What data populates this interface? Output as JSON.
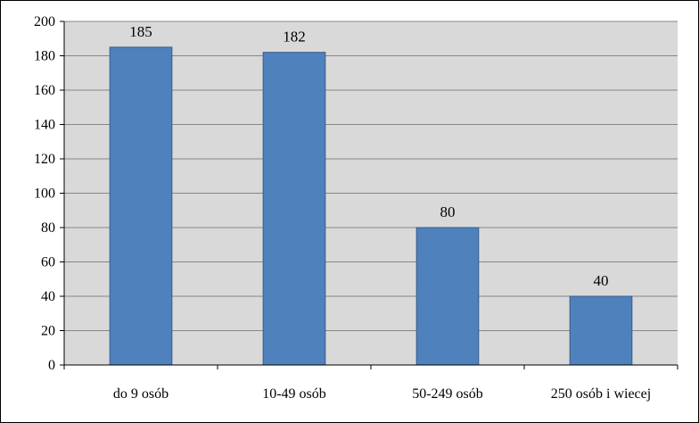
{
  "colors": {
    "bar": "#4f81bd",
    "bar_edge": "#385d8a",
    "plot_bg": "#d9d9d9",
    "grid": "#868686",
    "axis": "#000000"
  },
  "chart_data": {
    "type": "bar",
    "categories": [
      "do 9 osób",
      "10-49 osób",
      "50-249 osób",
      "250 osób i wiecej"
    ],
    "values": [
      185,
      182,
      80,
      40
    ],
    "data_labels": [
      "185",
      "182",
      "80",
      "40"
    ],
    "title": "",
    "xlabel": "",
    "ylabel": "",
    "ylim": [
      0,
      200
    ],
    "yticks": [
      0,
      20,
      40,
      60,
      80,
      100,
      120,
      140,
      160,
      180,
      200
    ],
    "grid": true,
    "legend": "none"
  }
}
